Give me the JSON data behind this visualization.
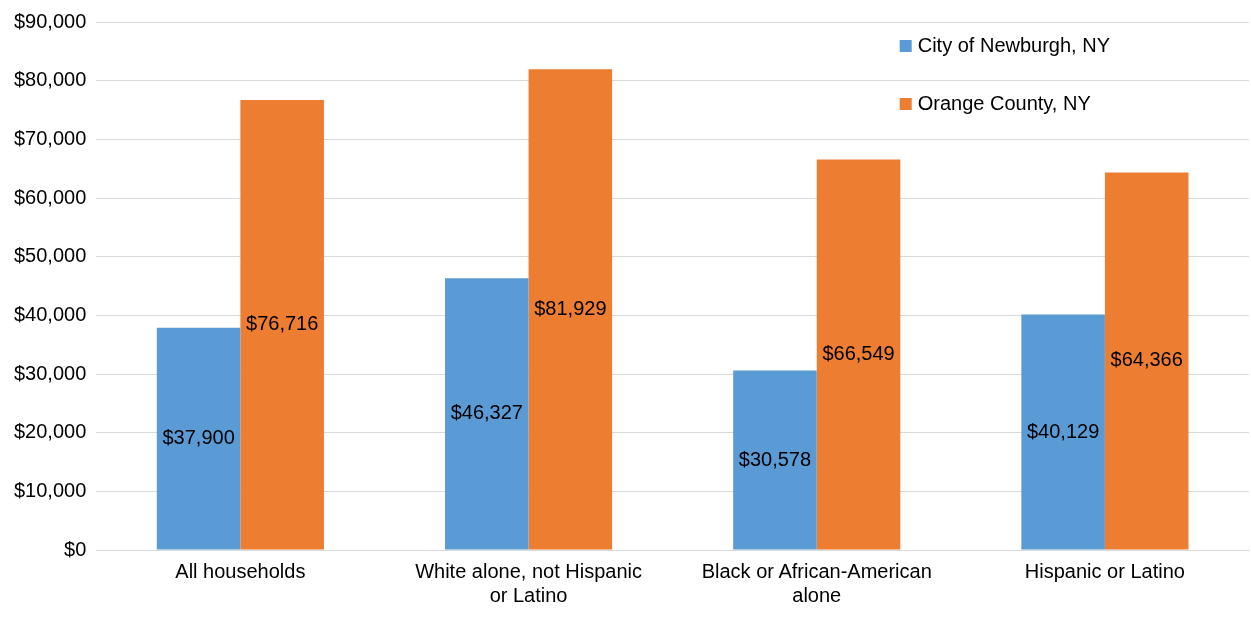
{
  "chart_data": {
    "type": "bar",
    "categories": [
      "All households",
      "White alone, not Hispanic or Latino",
      "Black or African-American alone",
      "Hispanic or Latino"
    ],
    "series": [
      {
        "name": "City of Newburgh, NY",
        "color": "#5b9bd5",
        "values": [
          37900,
          46327,
          30578,
          40129
        ],
        "value_labels": [
          "$37,900",
          "$46,327",
          "$30,578",
          "$40,129"
        ]
      },
      {
        "name": "Orange County, NY",
        "color": "#ed7d31",
        "values": [
          76716,
          81929,
          66549,
          64366
        ],
        "value_labels": [
          "$76,716",
          "$81,929",
          "$66,549",
          "$64,366"
        ]
      }
    ],
    "ylim": [
      0,
      90000
    ],
    "yticks": [
      {
        "value": 0,
        "label": "$0"
      },
      {
        "value": 10000,
        "label": "$10,000"
      },
      {
        "value": 20000,
        "label": "$20,000"
      },
      {
        "value": 30000,
        "label": "$30,000"
      },
      {
        "value": 40000,
        "label": "$40,000"
      },
      {
        "value": 50000,
        "label": "$50,000"
      },
      {
        "value": 60000,
        "label": "$60,000"
      },
      {
        "value": 70000,
        "label": "$70,000"
      },
      {
        "value": 80000,
        "label": "$80,000"
      },
      {
        "value": 90000,
        "label": "$90,000"
      }
    ],
    "grid": "y",
    "legend": "top right"
  }
}
